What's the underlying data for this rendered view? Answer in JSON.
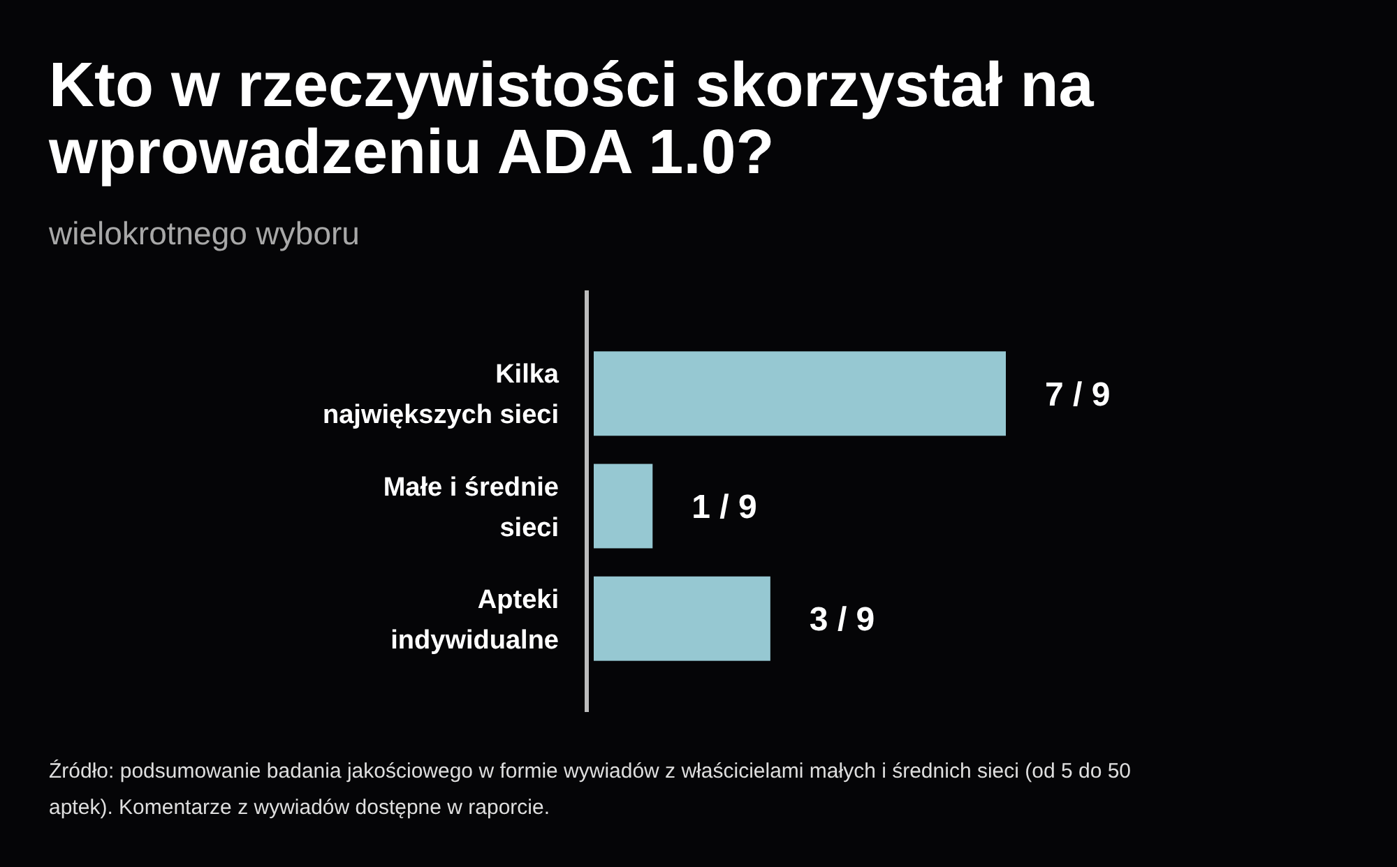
{
  "chart_data": {
    "type": "bar",
    "orientation": "horizontal",
    "title": "Kto w rzeczywistości skorzystał na wprowadzeniu ADA 1.0?",
    "subtitle": "wielokrotnego wyboru",
    "categories": [
      "Kilka największych sieci",
      "Małe i średnie sieci",
      "Apteki indywidualne"
    ],
    "values": [
      7,
      1,
      3
    ],
    "value_labels": [
      "7 / 9",
      "1 / 9",
      "3 / 9"
    ],
    "color": "#96c8d2",
    "annotations": [
      "Źródło: podsumowanie badania jakościowego w formie wywiadów z właścicielami małych i średnich sieci (od 5 do 50 aptek). Komentarze z wywiadów dostępne w raporcie."
    ]
  }
}
